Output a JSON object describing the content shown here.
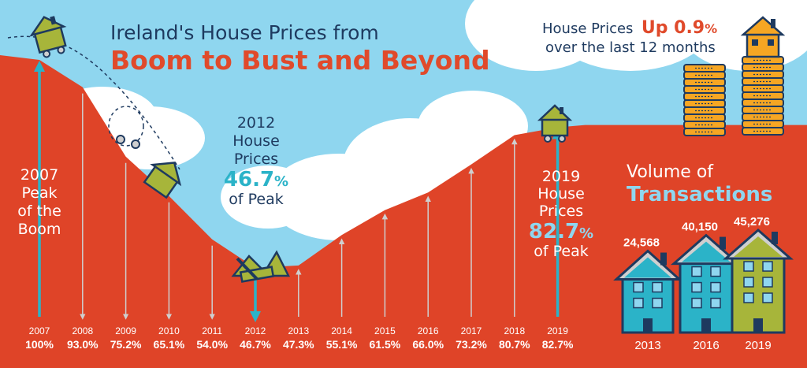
{
  "title": {
    "line1": "Ireland's House Prices from",
    "line2": "Boom to Bust and Beyond"
  },
  "headline": {
    "prefix": "House Prices",
    "up": "Up 0.9",
    "pct": "%",
    "suffix": "over the last 12 months"
  },
  "annotations": {
    "peak2007": [
      "2007",
      "Peak",
      "of the",
      "Boom"
    ],
    "low2012": {
      "l1": "2012",
      "l2": "House",
      "l3": "Prices",
      "pct": "46.7",
      "pct_sign": "%",
      "l5": "of Peak"
    },
    "now2019": {
      "l1": "2019",
      "l2": "House",
      "l3": "Prices",
      "pct": "82.7",
      "pct_sign": "%",
      "l5": "of Peak"
    }
  },
  "chart_data": [
    {
      "type": "area",
      "title": "Ireland's House Prices from Boom to Bust and Beyond",
      "x": [
        "2007",
        "2008",
        "2009",
        "2010",
        "2011",
        "2012",
        "2013",
        "2014",
        "2015",
        "2016",
        "2017",
        "2018",
        "2019"
      ],
      "values": [
        100,
        93.0,
        75.2,
        65.1,
        54.0,
        46.7,
        47.3,
        55.1,
        61.5,
        66.0,
        73.2,
        80.7,
        82.7
      ],
      "value_labels": [
        "100%",
        "93.0%",
        "75.2%",
        "65.1%",
        "54.0%",
        "46.7%",
        "47.3%",
        "55.1%",
        "61.5%",
        "66.0%",
        "73.2%",
        "80.7%",
        "82.7%"
      ],
      "unit": "% of peak",
      "ylim": [
        40,
        100
      ],
      "grid": false,
      "colors": {
        "area": "#df4428",
        "arrow": "#c9c9c9",
        "highlight_arrow": "#2bb3c8"
      }
    },
    {
      "type": "bar",
      "title": "Volume of Transactions",
      "categories": [
        "2013",
        "2016",
        "2019"
      ],
      "values": [
        24568,
        40150,
        45276
      ],
      "value_labels": [
        "24,568",
        "40,150",
        "45,276"
      ],
      "colors": [
        "#2bb3c8",
        "#2bb3c8",
        "#a7b53a"
      ]
    }
  ],
  "volume": {
    "title1": "Volume of",
    "title2": "Transactions"
  },
  "colors": {
    "sky": "#8fd6ef",
    "red": "#df4428",
    "navy": "#1e3a5f",
    "teal": "#2bb3c8",
    "olive": "#a7b53a",
    "gold": "#f6a623"
  },
  "icons": [
    "house-icon",
    "coin-stack-icon",
    "cloud-icon"
  ]
}
